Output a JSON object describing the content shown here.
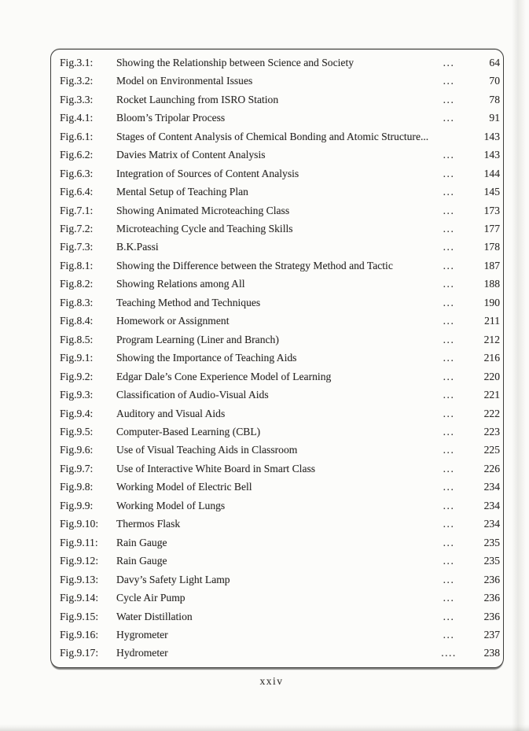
{
  "colors": {
    "page_background": "#fbfbf9",
    "box_border": "#3e3e3c",
    "text": "#2e2c2a"
  },
  "page": {
    "footer_page_number": "xxiv"
  },
  "figure_list": {
    "rows": [
      {
        "label": "Fig.3.1:",
        "title": "Showing the Relationship between Science and Society",
        "leader": "...",
        "page": "64"
      },
      {
        "label": "Fig.3.2:",
        "title": "Model on Environmental Issues",
        "leader": "...",
        "page": "70"
      },
      {
        "label": "Fig.3.3:",
        "title": "Rocket Launching from ISRO Station",
        "leader": "...",
        "page": "78"
      },
      {
        "label": "Fig.4.1:",
        "title": "Bloom’s Tripolar Process",
        "leader": "...",
        "page": "91"
      },
      {
        "label": "Fig.6.1:",
        "title": "Stages of Content Analysis of Chemical Bonding and Atomic Structure...",
        "leader": "",
        "page": "143"
      },
      {
        "label": "Fig.6.2:",
        "title": "Davies Matrix of Content Analysis",
        "leader": "...",
        "page": "143"
      },
      {
        "label": "Fig.6.3:",
        "title": "Integration of Sources of Content Analysis",
        "leader": "...",
        "page": "144"
      },
      {
        "label": "Fig.6.4:",
        "title": "Mental Setup of Teaching Plan",
        "leader": "...",
        "page": "145"
      },
      {
        "label": "Fig.7.1:",
        "title": "Showing Animated Microteaching Class",
        "leader": "...",
        "page": "173"
      },
      {
        "label": "Fig.7.2:",
        "title": "Microteaching Cycle and Teaching Skills",
        "leader": "...",
        "page": "177"
      },
      {
        "label": "Fig.7.3:",
        "title": "B.K.Passi",
        "leader": "...",
        "page": "178"
      },
      {
        "label": "Fig.8.1:",
        "title": "Showing the Difference between the Strategy Method and Tactic",
        "leader": "...",
        "page": "187"
      },
      {
        "label": "Fig.8.2:",
        "title": "Showing Relations among All",
        "leader": "...",
        "page": "188"
      },
      {
        "label": "Fig.8.3:",
        "title": "Teaching Method and Techniques",
        "leader": "...",
        "page": "190"
      },
      {
        "label": "Fig.8.4:",
        "title": "Homework or Assignment",
        "leader": "...",
        "page": "211"
      },
      {
        "label": "Fig.8.5:",
        "title": "Program Learning (Liner and Branch)",
        "leader": "...",
        "page": "212"
      },
      {
        "label": "Fig.9.1:",
        "title": "Showing the Importance of Teaching Aids",
        "leader": "...",
        "page": "216"
      },
      {
        "label": "Fig.9.2:",
        "title": "Edgar Dale’s Cone Experience Model of Learning",
        "leader": "...",
        "page": "220"
      },
      {
        "label": "Fig.9.3:",
        "title": "Classification of Audio-Visual Aids",
        "leader": "...",
        "page": "221"
      },
      {
        "label": "Fig.9.4:",
        "title": "Auditory and Visual Aids",
        "leader": "...",
        "page": "222"
      },
      {
        "label": "Fig.9.5:",
        "title": "Computer-Based Learning (CBL)",
        "leader": "...",
        "page": "223"
      },
      {
        "label": "Fig.9.6:",
        "title": "Use of Visual Teaching Aids in Classroom",
        "leader": "...",
        "page": "225"
      },
      {
        "label": "Fig.9.7:",
        "title": "Use of Interactive White Board in Smart Class",
        "leader": "...",
        "page": "226"
      },
      {
        "label": "Fig.9.8:",
        "title": "Working Model of Electric Bell",
        "leader": "...",
        "page": "234"
      },
      {
        "label": "Fig.9.9:",
        "title": "Working Model of Lungs",
        "leader": "...",
        "page": "234"
      },
      {
        "label": "Fig.9.10:",
        "title": "Thermos Flask",
        "leader": "...",
        "page": "234"
      },
      {
        "label": "Fig.9.11:",
        "title": "Rain Gauge",
        "leader": "...",
        "page": "235"
      },
      {
        "label": "Fig.9.12:",
        "title": "Rain Gauge",
        "leader": "...",
        "page": "235"
      },
      {
        "label": "Fig.9.13:",
        "title": "Davy’s Safety Light Lamp",
        "leader": "...",
        "page": "236"
      },
      {
        "label": "Fig.9.14:",
        "title": "Cycle Air Pump",
        "leader": "...",
        "page": "236"
      },
      {
        "label": "Fig.9.15:",
        "title": "Water Distillation",
        "leader": "...",
        "page": "236"
      },
      {
        "label": "Fig.9.16:",
        "title": "Hygrometer",
        "leader": "...",
        "page": "237"
      },
      {
        "label": "Fig.9.17:",
        "title": "Hydrometer",
        "leader": "....",
        "page": "238"
      }
    ]
  }
}
